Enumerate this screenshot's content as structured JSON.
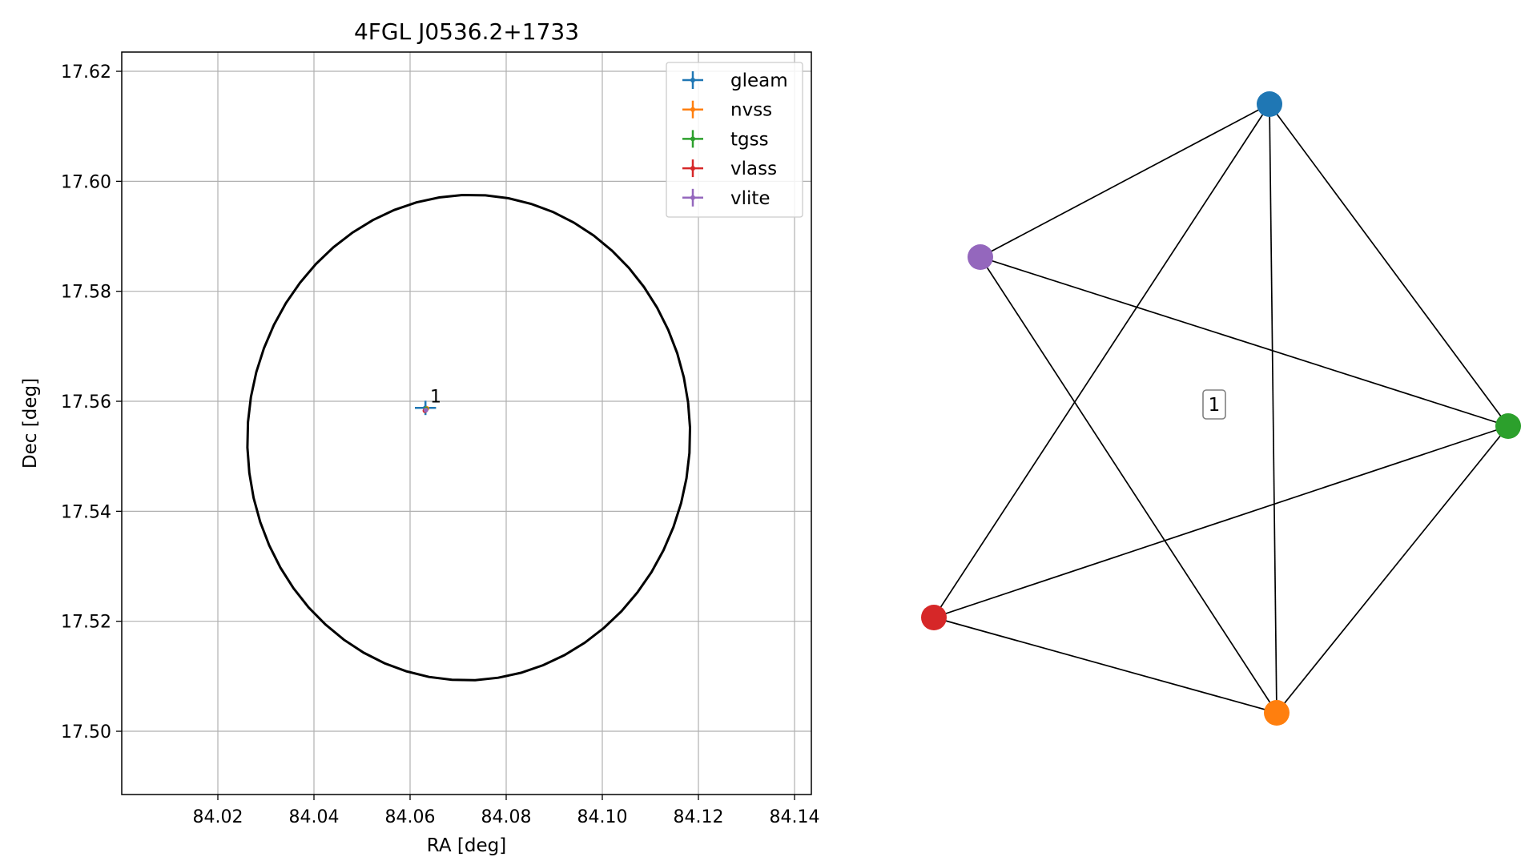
{
  "chart_data": [
    {
      "type": "scatter",
      "title": "4FGL J0536.2+1733",
      "xlabel": "RA [deg]",
      "ylabel": "Dec [deg]",
      "xlim": [
        84.0,
        84.1435
      ],
      "ylim": [
        17.4885,
        17.6235
      ],
      "xticks": [
        84.02,
        84.04,
        84.06,
        84.08,
        84.1,
        84.12,
        84.14
      ],
      "xtick_labels": [
        "84.02",
        "84.04",
        "84.06",
        "84.08",
        "84.10",
        "84.12",
        "84.14"
      ],
      "yticks": [
        17.5,
        17.52,
        17.54,
        17.56,
        17.58,
        17.6,
        17.62
      ],
      "ytick_labels": [
        "17.50",
        "17.52",
        "17.54",
        "17.56",
        "17.58",
        "17.60",
        "17.62"
      ],
      "grid": true,
      "legend_position": "top-right",
      "series": [
        {
          "name": "gleam",
          "color": "#1f77b4",
          "x": 84.0632,
          "y": 17.5588,
          "xerr": 0.0022,
          "yerr": 0.0013
        },
        {
          "name": "nvss",
          "color": "#ff7f0e",
          "x": 84.0635,
          "y": 17.5587,
          "xerr": 0.0003,
          "yerr": 0.0003
        },
        {
          "name": "tgss",
          "color": "#2ca02c",
          "x": 84.0633,
          "y": 17.5586,
          "xerr": 0.0003,
          "yerr": 0.0003
        },
        {
          "name": "vlass",
          "color": "#d62728",
          "x": 84.0631,
          "y": 17.5583,
          "xerr": 0.0003,
          "yerr": 0.0003
        },
        {
          "name": "vlite",
          "color": "#9467bd",
          "x": 84.0633,
          "y": 17.5584,
          "xerr": 0.0003,
          "yerr": 0.0003
        }
      ],
      "ellipse": {
        "center_x": 84.0722,
        "center_y": 17.5534,
        "semi_axis_ra": 0.0461,
        "semi_axis_dec": 0.0441,
        "tilt_deg": 8,
        "color": "#000000"
      },
      "annotations": [
        {
          "text": "1",
          "x": 84.0635,
          "y": 17.5595
        }
      ]
    },
    {
      "type": "network",
      "nodes": [
        {
          "id": "gleam",
          "color": "#1f77b4"
        },
        {
          "id": "nvss",
          "color": "#ff7f0e"
        },
        {
          "id": "tgss",
          "color": "#2ca02c"
        },
        {
          "id": "vlass",
          "color": "#d62728"
        },
        {
          "id": "vlite",
          "color": "#9467bd"
        }
      ],
      "edges": [
        [
          "gleam",
          "vlite"
        ],
        [
          "gleam",
          "tgss"
        ],
        [
          "gleam",
          "vlass"
        ],
        [
          "gleam",
          "nvss"
        ],
        [
          "vlite",
          "tgss"
        ],
        [
          "vlite",
          "nvss"
        ],
        [
          "tgss",
          "vlass"
        ],
        [
          "tgss",
          "nvss"
        ],
        [
          "vlass",
          "nvss"
        ]
      ],
      "cluster_label": "1"
    }
  ]
}
